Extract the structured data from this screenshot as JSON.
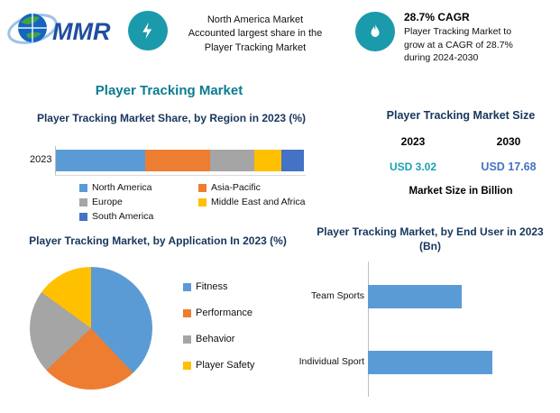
{
  "brand": {
    "name": "MMR"
  },
  "colors": {
    "teal_badge": "#1B9AAB",
    "navy_heading": "#17365D",
    "main_title_teal": "#0B7C8F",
    "value_2023_teal": "#1BA0B0",
    "value_2030_blue": "#4472C4",
    "bar_blue": "#5B9BD5",
    "bar_orange": "#ED7D31",
    "bar_gray": "#A5A5A5",
    "bar_yellow": "#FFC000",
    "bar_navy": "#4472C4"
  },
  "header": {
    "badge1": {
      "icon": "lightning-icon",
      "text": "North America Market\nAccounted largest share in the\nPlayer Tracking Market"
    },
    "badge2": {
      "icon": "flame-icon",
      "title": "28.7% CAGR",
      "text": "Player Tracking Market to\ngrow at a CAGR of 28.7%\nduring 2024-2030"
    }
  },
  "main_title": "Player Tracking Market",
  "market_size": {
    "title": "Player Tracking Market Size",
    "years": [
      "2023",
      "2030"
    ],
    "values": [
      "USD 3.02",
      "USD 17.68"
    ],
    "note": "Market Size in Billion"
  },
  "chart_data": [
    {
      "id": "region_share",
      "type": "bar",
      "subtype": "stacked-horizontal",
      "title": "Player Tracking Market Share, by Region in 2023 (%)",
      "categories": [
        "2023"
      ],
      "series": [
        {
          "name": "North America",
          "color": "#5B9BD5",
          "values": [
            36
          ]
        },
        {
          "name": "Asia-Pacific",
          "color": "#ED7D31",
          "values": [
            26
          ]
        },
        {
          "name": "Europe",
          "color": "#A5A5A5",
          "values": [
            18
          ]
        },
        {
          "name": "Middle East and Africa",
          "color": "#FFC000",
          "values": [
            11
          ]
        },
        {
          "name": "South America",
          "color": "#4472C4",
          "values": [
            9
          ]
        }
      ],
      "xlim": [
        0,
        100
      ],
      "legend_position": "bottom"
    },
    {
      "id": "application_share",
      "type": "pie",
      "title": "Player Tracking Market, by Application In 2023 (%)",
      "labels": [
        "Fitness",
        "Performance",
        "Behavior",
        "Player Safety"
      ],
      "values": [
        38,
        25,
        22,
        15
      ],
      "colors": [
        "#5B9BD5",
        "#ED7D31",
        "#A5A5A5",
        "#FFC000"
      ],
      "legend_position": "right"
    },
    {
      "id": "end_user",
      "type": "bar",
      "subtype": "horizontal",
      "title": "Player Tracking Market, by End User in 2023 (Bn)",
      "categories": [
        "Team Sports",
        "Individual Sport"
      ],
      "values": [
        1.3,
        1.72
      ],
      "color": "#5B9BD5",
      "xlim": [
        0,
        2
      ],
      "grid": false
    }
  ]
}
